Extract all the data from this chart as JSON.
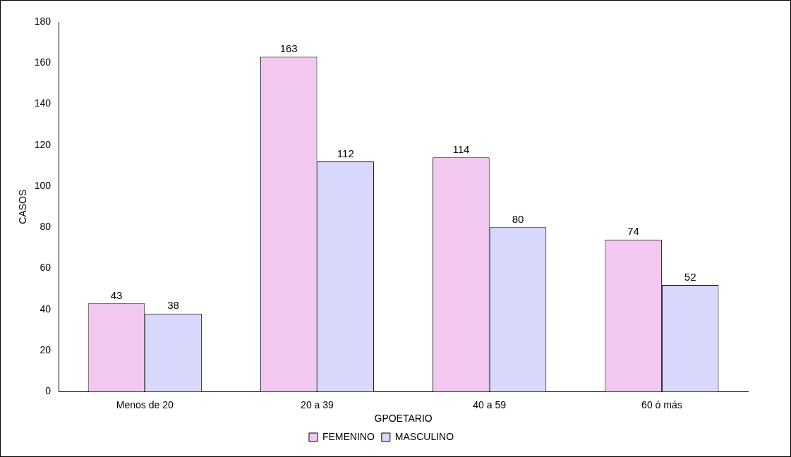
{
  "chart_data": {
    "type": "bar",
    "xlabel": "GPOETARIO",
    "ylabel": "CASOS",
    "categories": [
      "Menos de 20",
      "20 a 39",
      "40 a 59",
      "60 ó más"
    ],
    "series": [
      {
        "name": "FEMENINO",
        "color": "#f2c8f0",
        "values": [
          43,
          163,
          114,
          74
        ]
      },
      {
        "name": "MASCULINO",
        "color": "#d8d8fc",
        "values": [
          38,
          112,
          80,
          52
        ]
      }
    ],
    "ylim": [
      0,
      180
    ],
    "yticks": [
      0,
      20,
      40,
      60,
      80,
      100,
      120,
      140,
      160,
      180
    ],
    "grid": false,
    "legend": "bottom",
    "data_labels": true
  }
}
